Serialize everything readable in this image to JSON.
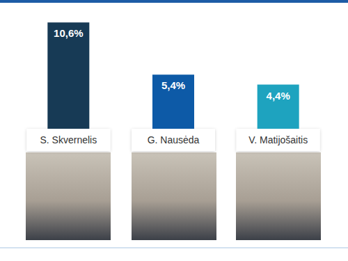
{
  "chart_data": {
    "type": "bar",
    "categories": [
      "S. Skvernelis",
      "G. Nausėda",
      "V. Matijošaitis"
    ],
    "values": [
      10.6,
      5.4,
      4.4
    ],
    "value_labels": [
      "10,6%",
      "5,4%",
      "4,4%"
    ],
    "colors": [
      "#173a55",
      "#0d5aa7",
      "#1ea3bf"
    ],
    "ylim": [
      0,
      12
    ],
    "data_labels": true,
    "tick_labels": "x",
    "grid": false
  }
}
